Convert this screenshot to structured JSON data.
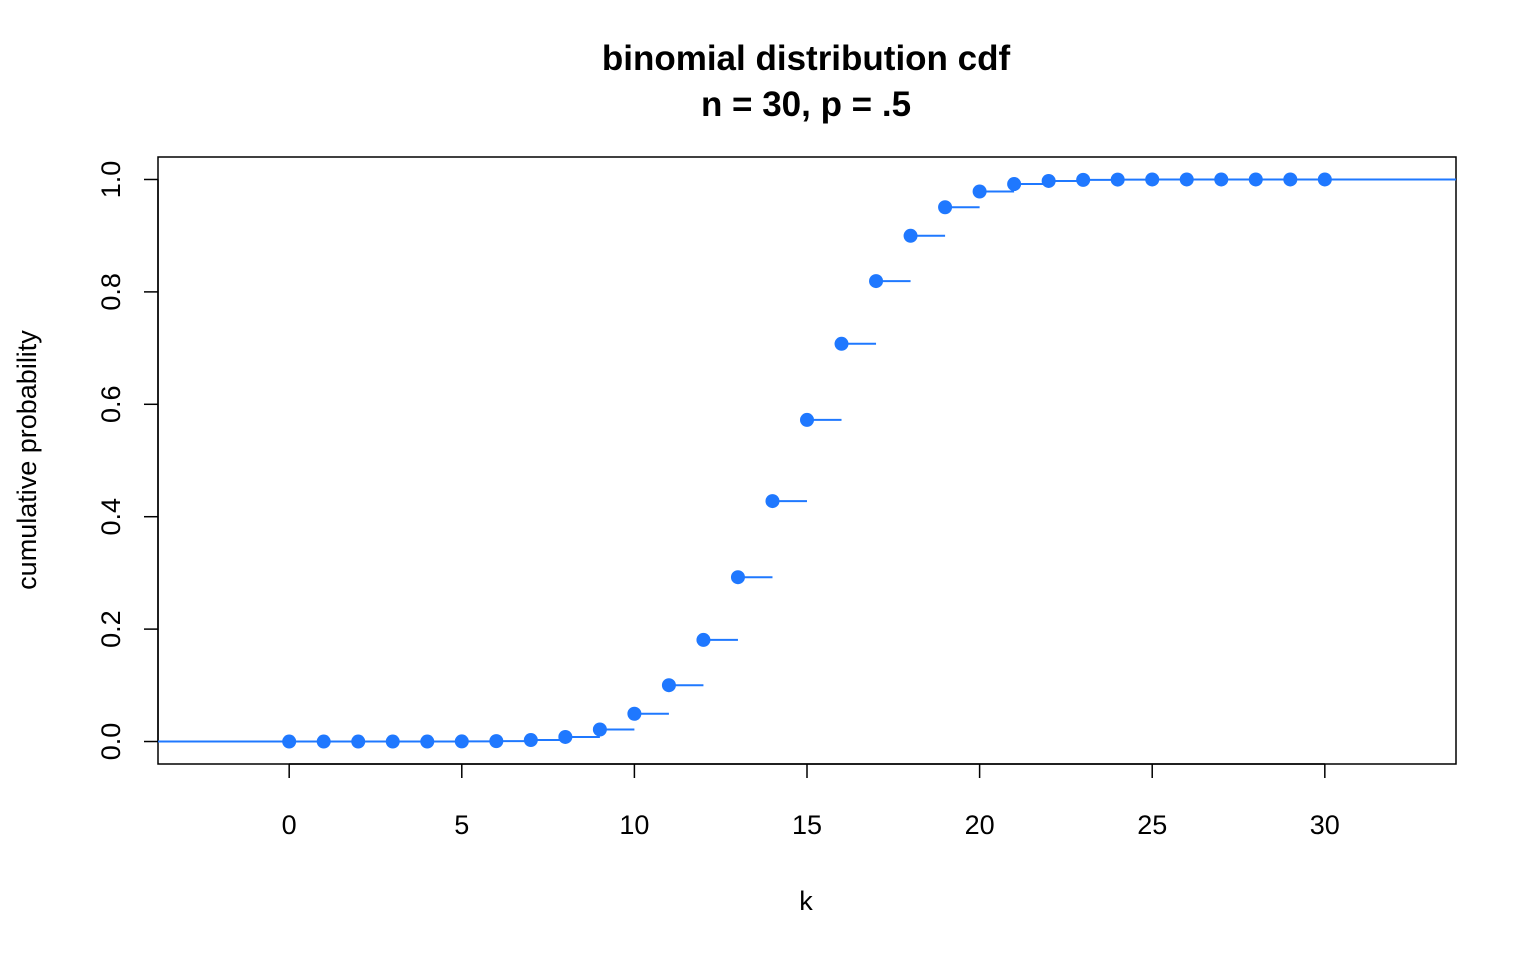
{
  "chart_data": {
    "type": "scatter",
    "title": "binomial distribution cdf",
    "subtitle": "n = 30, p = .5",
    "xlabel": "k",
    "ylabel": "cumulative probability",
    "xlim": [
      -3.8,
      33.8
    ],
    "ylim": [
      -0.04,
      1.04
    ],
    "x_ticks": [
      0,
      5,
      10,
      15,
      20,
      25,
      30
    ],
    "x_tick_labels": [
      "0",
      "5",
      "10",
      "15",
      "20",
      "25",
      "30"
    ],
    "y_ticks": [
      0.0,
      0.2,
      0.4,
      0.6,
      0.8,
      1.0
    ],
    "y_tick_labels": [
      "0.0",
      "0.2",
      "0.4",
      "0.6",
      "0.8",
      "1.0"
    ],
    "grid": false,
    "color": "#1f78ff",
    "series": [
      {
        "x": [
          0,
          1,
          2,
          3,
          4,
          5,
          6,
          7,
          8,
          9,
          10,
          11,
          12,
          13,
          14,
          15,
          16,
          17,
          18,
          19,
          20,
          21,
          22,
          23,
          24,
          25,
          26,
          27,
          28,
          29,
          30
        ],
        "values": [
          0.0,
          0.0,
          0.0,
          0.0,
          0.0,
          0.0002,
          0.0007,
          0.0026,
          0.0081,
          0.0214,
          0.0494,
          0.1002,
          0.1808,
          0.2923,
          0.4278,
          0.5722,
          0.7077,
          0.8192,
          0.8998,
          0.9506,
          0.9786,
          0.9919,
          0.9974,
          0.9993,
          0.9998,
          1.0,
          1.0,
          1.0,
          1.0,
          1.0,
          1.0
        ]
      }
    ]
  }
}
